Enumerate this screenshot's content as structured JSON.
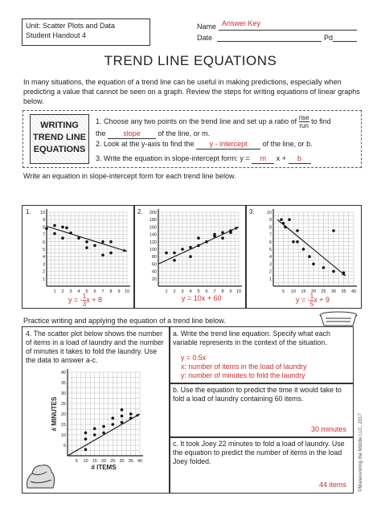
{
  "header": {
    "unit_line1": "Unit: Scatter Plots and Data",
    "unit_line2": "Student Handout 4",
    "name_label": "Name",
    "name_value": "Answer Key",
    "date_label": "Date",
    "pd_label": "Pd"
  },
  "title": "TREND LINE EQUATIONS",
  "intro": "In many situations, the equation of a trend line can be useful in making predictions, especially when predicting a value that cannot be seen on a graph. Review the steps for writing equations of linear graphs below.",
  "writing_box": [
    "WRITING",
    "TREND LINE",
    "EQUATIONS"
  ],
  "steps": {
    "s1_a": "1. Choose any two points on the trend line and set up a ratio of",
    "s1_frac_top": "rise",
    "s1_frac_bottom": "run",
    "s1_b": "to find",
    "s1_c": "the",
    "s1_blank": "slope",
    "s1_d": "of the line, or m.",
    "s2_a": "2. Look at the y-axis to find the",
    "s2_blank": "y - intercept",
    "s2_b": "of the line, or b.",
    "s3_a": "3. Write the equation in slope-intercept form: y =",
    "s3_m": "m",
    "s3_x": "x +",
    "s3_b": "b"
  },
  "prompt1": "Write an equation in slope-intercept form for each trend line below.",
  "graphs": [
    {
      "number": "1.",
      "answer_pre": "y = -",
      "answer_frac_top": "1",
      "answer_frac_bottom": "3",
      "answer_post": "x + 8",
      "chart_data": {
        "type": "scatter",
        "x_ticks": [
          "1",
          "2",
          "3",
          "4",
          "5",
          "6",
          "7",
          "8",
          "9",
          "10"
        ],
        "y_ticks": [
          "1",
          "2",
          "3",
          "4",
          "5",
          "6",
          "7",
          "8",
          "9",
          "10"
        ],
        "xlim": [
          0,
          10
        ],
        "ylim": [
          0,
          10
        ],
        "points": [
          [
            0,
            7.8
          ],
          [
            1,
            8.2
          ],
          [
            1,
            7.1
          ],
          [
            2,
            8
          ],
          [
            2.5,
            7.9
          ],
          [
            2,
            6.5
          ],
          [
            3,
            7.2
          ],
          [
            4,
            6.5
          ],
          [
            5,
            6
          ],
          [
            6,
            5.5
          ],
          [
            5,
            5.2
          ],
          [
            7,
            6
          ],
          [
            8,
            6
          ],
          [
            7,
            4.2
          ],
          [
            8,
            4.5
          ]
        ],
        "trend": [
          [
            0,
            8.1
          ],
          [
            10,
            4.7
          ]
        ]
      }
    },
    {
      "number": "2.",
      "answer": "y = 10x + 60",
      "chart_data": {
        "type": "scatter",
        "x_ticks": [
          "1",
          "2",
          "3",
          "4",
          "5",
          "6",
          "7",
          "8",
          "9",
          "10"
        ],
        "y_ticks": [
          "20",
          "40",
          "60",
          "80",
          "100",
          "120",
          "140",
          "160",
          "180",
          "200"
        ],
        "xlim": [
          0,
          10
        ],
        "ylim": [
          0,
          200
        ],
        "points": [
          [
            1,
            90
          ],
          [
            2,
            90
          ],
          [
            2,
            70
          ],
          [
            3,
            100
          ],
          [
            4,
            80
          ],
          [
            4,
            105
          ],
          [
            5,
            110
          ],
          [
            5,
            130
          ],
          [
            6,
            120
          ],
          [
            7,
            135
          ],
          [
            7,
            140
          ],
          [
            8,
            145
          ],
          [
            8,
            130
          ],
          [
            9,
            150
          ],
          [
            9,
            145
          ]
        ],
        "trend": [
          [
            0,
            60
          ],
          [
            10,
            160
          ]
        ]
      }
    },
    {
      "number": "3.",
      "answer_pre": "y = -",
      "answer_frac_top": "1",
      "answer_frac_bottom": "5",
      "answer_post": "x + 9",
      "chart_data": {
        "type": "scatter",
        "x_ticks": [
          "5",
          "10",
          "15",
          "20",
          "25",
          "30",
          "35",
          "40"
        ],
        "y_ticks": [
          "1",
          "2",
          "3",
          "4",
          "5",
          "6",
          "7",
          "8",
          "9",
          "10"
        ],
        "xlim": [
          0,
          40
        ],
        "ylim": [
          0,
          10
        ],
        "points": [
          [
            4,
            9
          ],
          [
            5,
            8.5
          ],
          [
            6,
            8
          ],
          [
            8,
            9
          ],
          [
            10,
            6
          ],
          [
            12,
            7.5
          ],
          [
            12,
            6
          ],
          [
            15,
            5
          ],
          [
            18,
            4
          ],
          [
            20,
            3
          ],
          [
            25,
            2.5
          ],
          [
            30,
            7.5
          ],
          [
            30,
            2
          ],
          [
            35,
            1.8
          ]
        ],
        "trend": [
          [
            2,
            9
          ],
          [
            36,
            1.4
          ]
        ]
      }
    }
  ],
  "prompt2": "Practice writing and applying the equation of a trend line below.",
  "q4": {
    "text": "4. The scatter plot below shows the number of items in a load of laundry and the number of minutes it takes to fold the laundry. Use the data to answer a-c.",
    "ylabel": "# MINUTES",
    "xlabel": "# ITEMS",
    "chart_data": {
      "type": "scatter",
      "x_ticks": [
        "5",
        "10",
        "15",
        "20",
        "25",
        "30",
        "35",
        "40"
      ],
      "y_ticks": [
        "5",
        "10",
        "15",
        "20",
        "25",
        "30",
        "35",
        "40"
      ],
      "xlim": [
        0,
        40
      ],
      "ylim": [
        0,
        40
      ],
      "points": [
        [
          10,
          3
        ],
        [
          10,
          8
        ],
        [
          10,
          11
        ],
        [
          15,
          10
        ],
        [
          15,
          13
        ],
        [
          20,
          11
        ],
        [
          20,
          14
        ],
        [
          25,
          15
        ],
        [
          25,
          18
        ],
        [
          30,
          16
        ],
        [
          30,
          19
        ],
        [
          30,
          22
        ],
        [
          35,
          20
        ],
        [
          35,
          18
        ]
      ],
      "trend": [
        [
          0,
          0
        ],
        [
          40,
          20
        ]
      ]
    }
  },
  "qa": {
    "text": "a. Write the trend line equation. Specify what each variable represents in the context of the situation.",
    "line1": "y = 0.5x",
    "line2": "x: number of items in the load of laundry",
    "line3": "y: number of minutes to fold the laundry"
  },
  "qb": {
    "text": "b. Use the equation to predict the time it would take to fold a load of laundry containing 60 items.",
    "answer": "30 minutes"
  },
  "qc": {
    "text": "c. It took Joey 22 minutes to fold a load of laundry. Use the equation to predict the number of items in the load Joey folded.",
    "answer": "44 items"
  },
  "copyright": "©Maneuvering the Middle LLC, 2017",
  "colors": {
    "answer": "#d42a2a",
    "ink": "#222222"
  }
}
